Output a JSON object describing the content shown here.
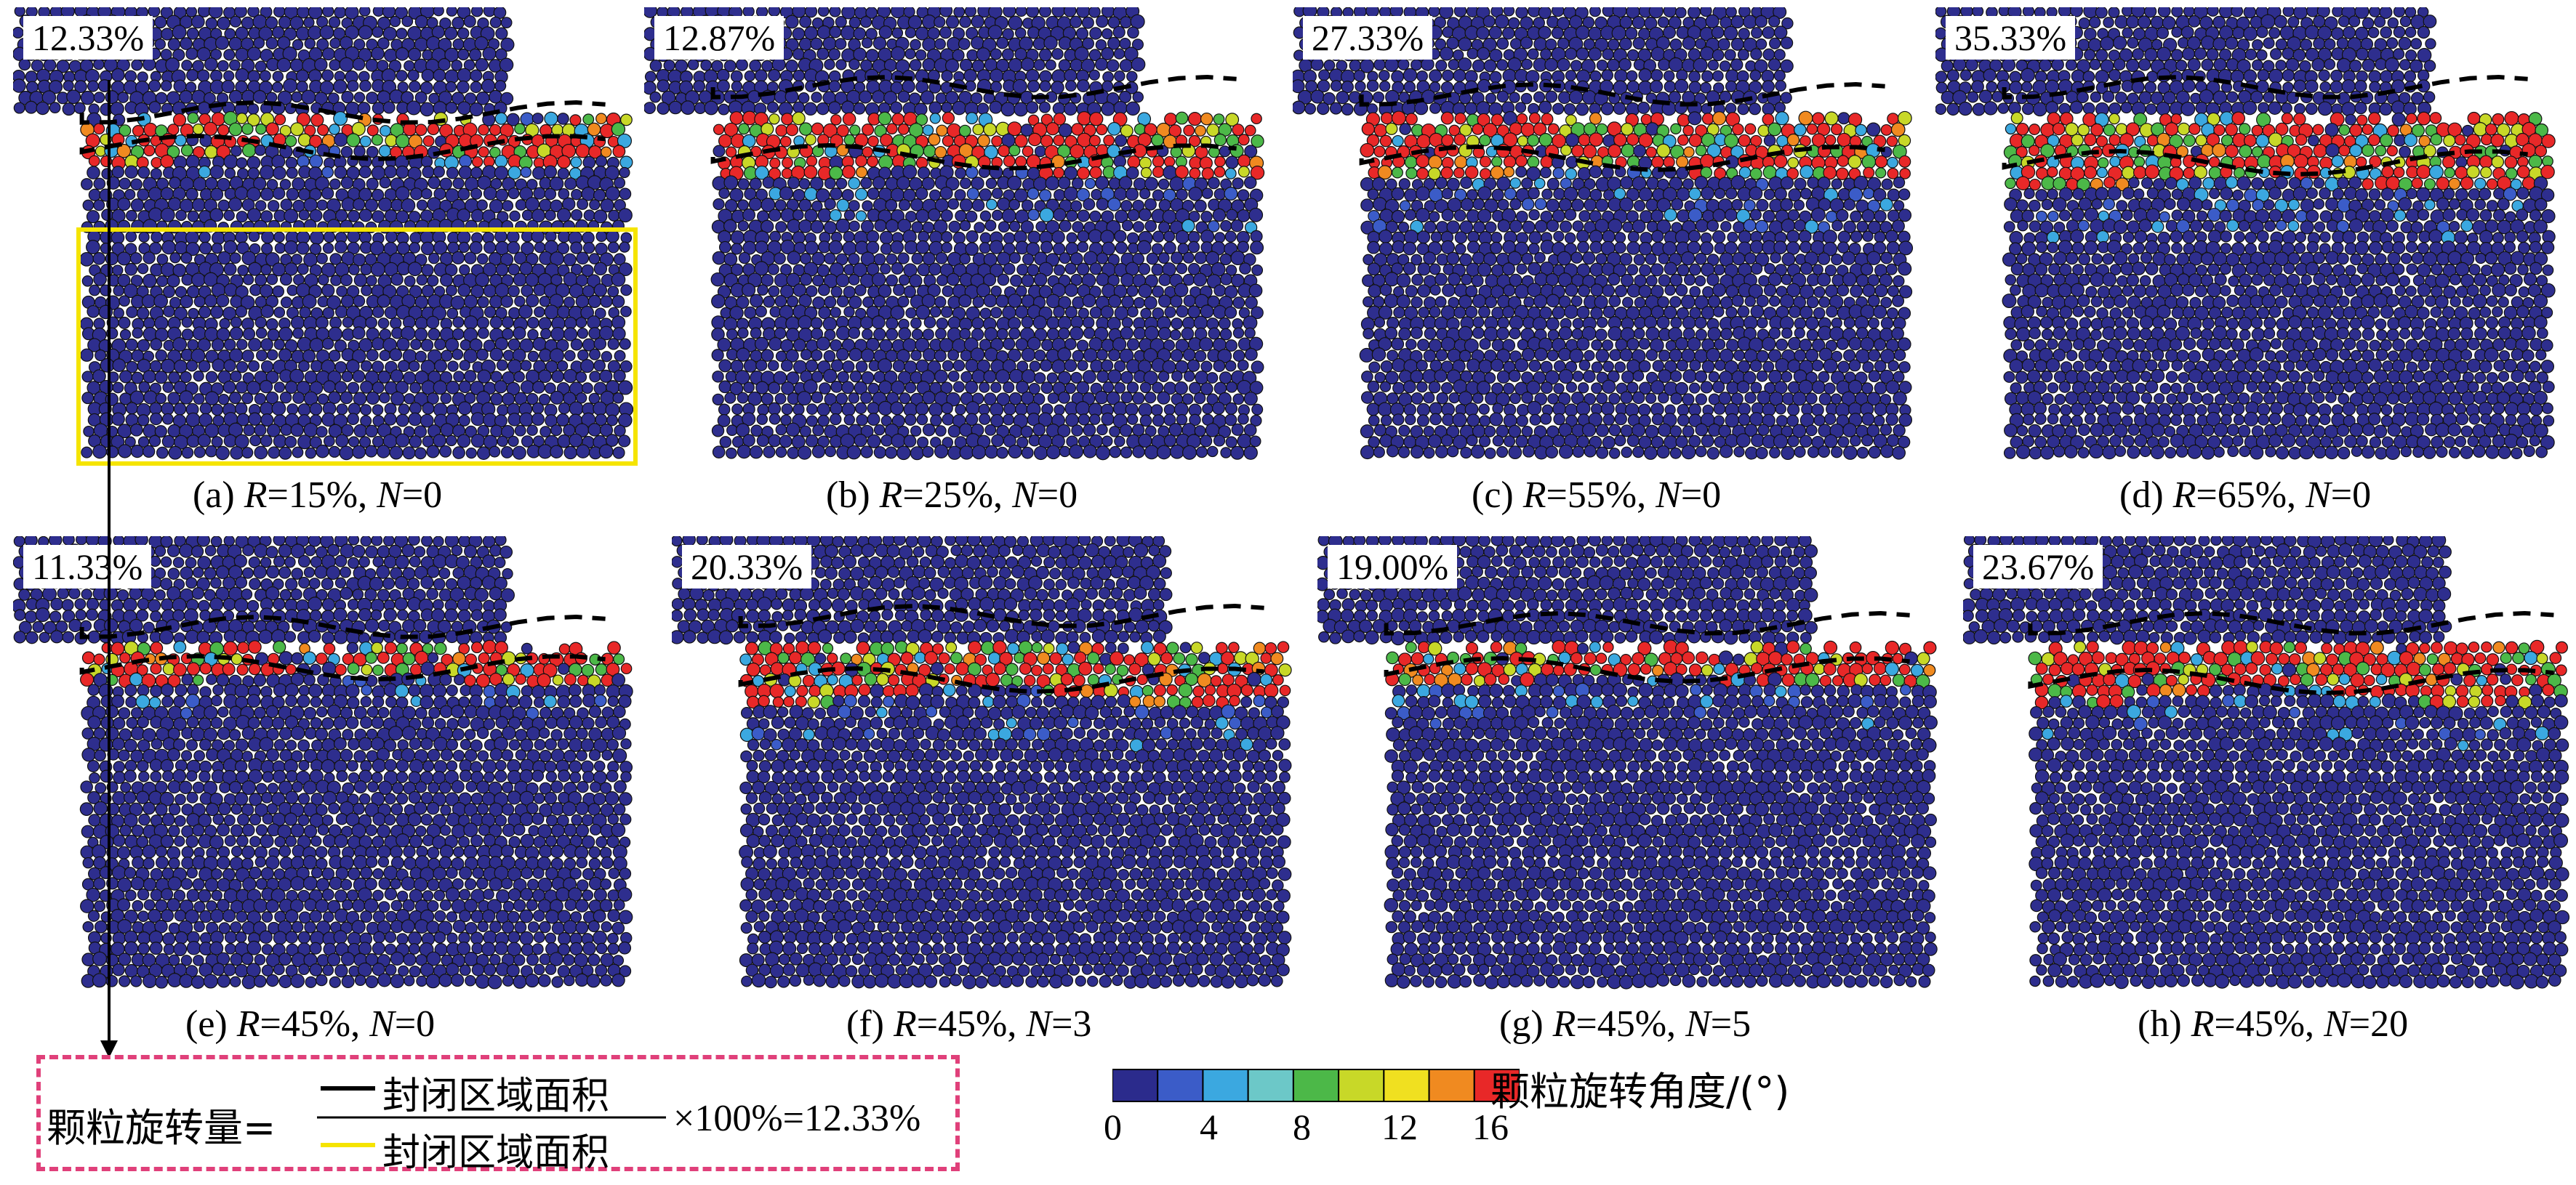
{
  "panels": [
    {
      "id": "a",
      "percent": "12.33%",
      "cap_prefix": "(a) ",
      "R_value": "=15%, ",
      "N_value": "=0"
    },
    {
      "id": "b",
      "percent": "12.87%",
      "cap_prefix": "(b) ",
      "R_value": "=25%, ",
      "N_value": "=0"
    },
    {
      "id": "c",
      "percent": "27.33%",
      "cap_prefix": "(c) ",
      "R_value": "=55%, ",
      "N_value": "=0"
    },
    {
      "id": "d",
      "percent": "35.33%",
      "cap_prefix": "(d) ",
      "R_value": "=65%, ",
      "N_value": "=0"
    },
    {
      "id": "e",
      "percent": "11.33%",
      "cap_prefix": "(e) ",
      "R_value": "=45%, ",
      "N_value": "=0"
    },
    {
      "id": "f",
      "percent": "20.33%",
      "cap_prefix": "(f) ",
      "R_value": "=45%, ",
      "N_value": "=3"
    },
    {
      "id": "g",
      "percent": "19.00%",
      "cap_prefix": "(g) ",
      "R_value": "=45%, ",
      "N_value": "=5"
    },
    {
      "id": "h",
      "percent": "23.67%",
      "cap_prefix": "(h) ",
      "R_value": "=45%, ",
      "N_value": "=20"
    }
  ],
  "caption_labels": {
    "R": "R",
    "N": "N"
  },
  "formula": {
    "left": "颗粒旋转量=",
    "numerator": "封闭区域面积",
    "denominator": "封闭区域面积",
    "right": "×100%=12.33%"
  },
  "legend": {
    "title": "颗粒旋转角度/(°)",
    "ticks": [
      "0",
      "4",
      "8",
      "12",
      "16"
    ],
    "colors": [
      "#2b2b8c",
      "#3b5cc8",
      "#3ba8e0",
      "#6cc8c8",
      "#4cb848",
      "#c8d828",
      "#f0e020",
      "#f08a20",
      "#e82828"
    ]
  },
  "colors": {
    "particle_base": "#2e2e8e",
    "highlight_box": "#f5e400",
    "formula_border": "#e0407a"
  }
}
